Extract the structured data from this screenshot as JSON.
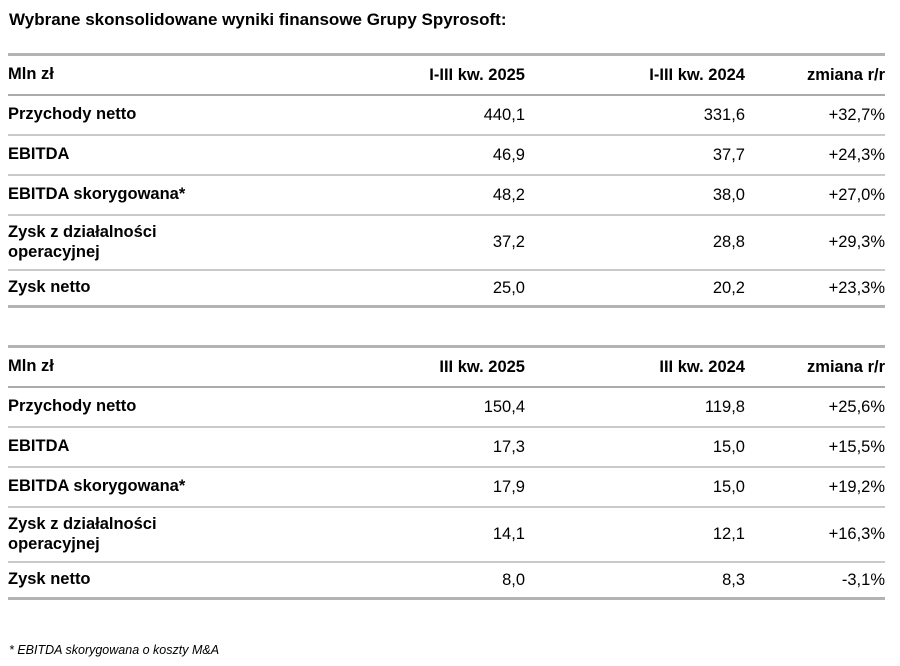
{
  "page": {
    "title": "Wybrane skonsolidowane wyniki finansowe Grupy Spyrosoft:",
    "footnote": "* EBITDA skorygowana o koszty M&A"
  },
  "colors": {
    "background": "#ffffff",
    "text": "#000000",
    "border_outer": "#b3b3b3",
    "border_header": "#ababab",
    "border_row": "#c9c9c9"
  },
  "tables": [
    {
      "headers": {
        "unit": "Mln zł",
        "col1": "I-III kw. 2025",
        "col2": "I-III kw. 2024",
        "change": "zmiana r/r"
      },
      "rows": [
        {
          "label": "Przychody netto",
          "v1": "440,1",
          "v2": "331,6",
          "change": "+32,7%"
        },
        {
          "label": "EBITDA",
          "v1": "46,9",
          "v2": "37,7",
          "change": "+24,3%"
        },
        {
          "label": "EBITDA skorygowana*",
          "v1": "48,2",
          "v2": "38,0",
          "change": "+27,0%"
        },
        {
          "label": "Zysk z działalności\noperacyjnej",
          "v1": "37,2",
          "v2": "28,8",
          "change": "+29,3%"
        },
        {
          "label": "Zysk netto",
          "v1": "25,0",
          "v2": "20,2",
          "change": "+23,3%"
        }
      ]
    },
    {
      "headers": {
        "unit": "Mln zł",
        "col1": "III kw. 2025",
        "col2": "III kw. 2024",
        "change": "zmiana r/r"
      },
      "rows": [
        {
          "label": "Przychody netto",
          "v1": "150,4",
          "v2": "119,8",
          "change": "+25,6%"
        },
        {
          "label": "EBITDA",
          "v1": "17,3",
          "v2": "15,0",
          "change": "+15,5%"
        },
        {
          "label": "EBITDA skorygowana*",
          "v1": "17,9",
          "v2": "15,0",
          "change": "+19,2%"
        },
        {
          "label": "Zysk z działalności\noperacyjnej",
          "v1": "14,1",
          "v2": "12,1",
          "change": "+16,3%"
        },
        {
          "label": "Zysk netto",
          "v1": "8,0",
          "v2": "8,3",
          "change": "-3,1%"
        }
      ]
    }
  ]
}
